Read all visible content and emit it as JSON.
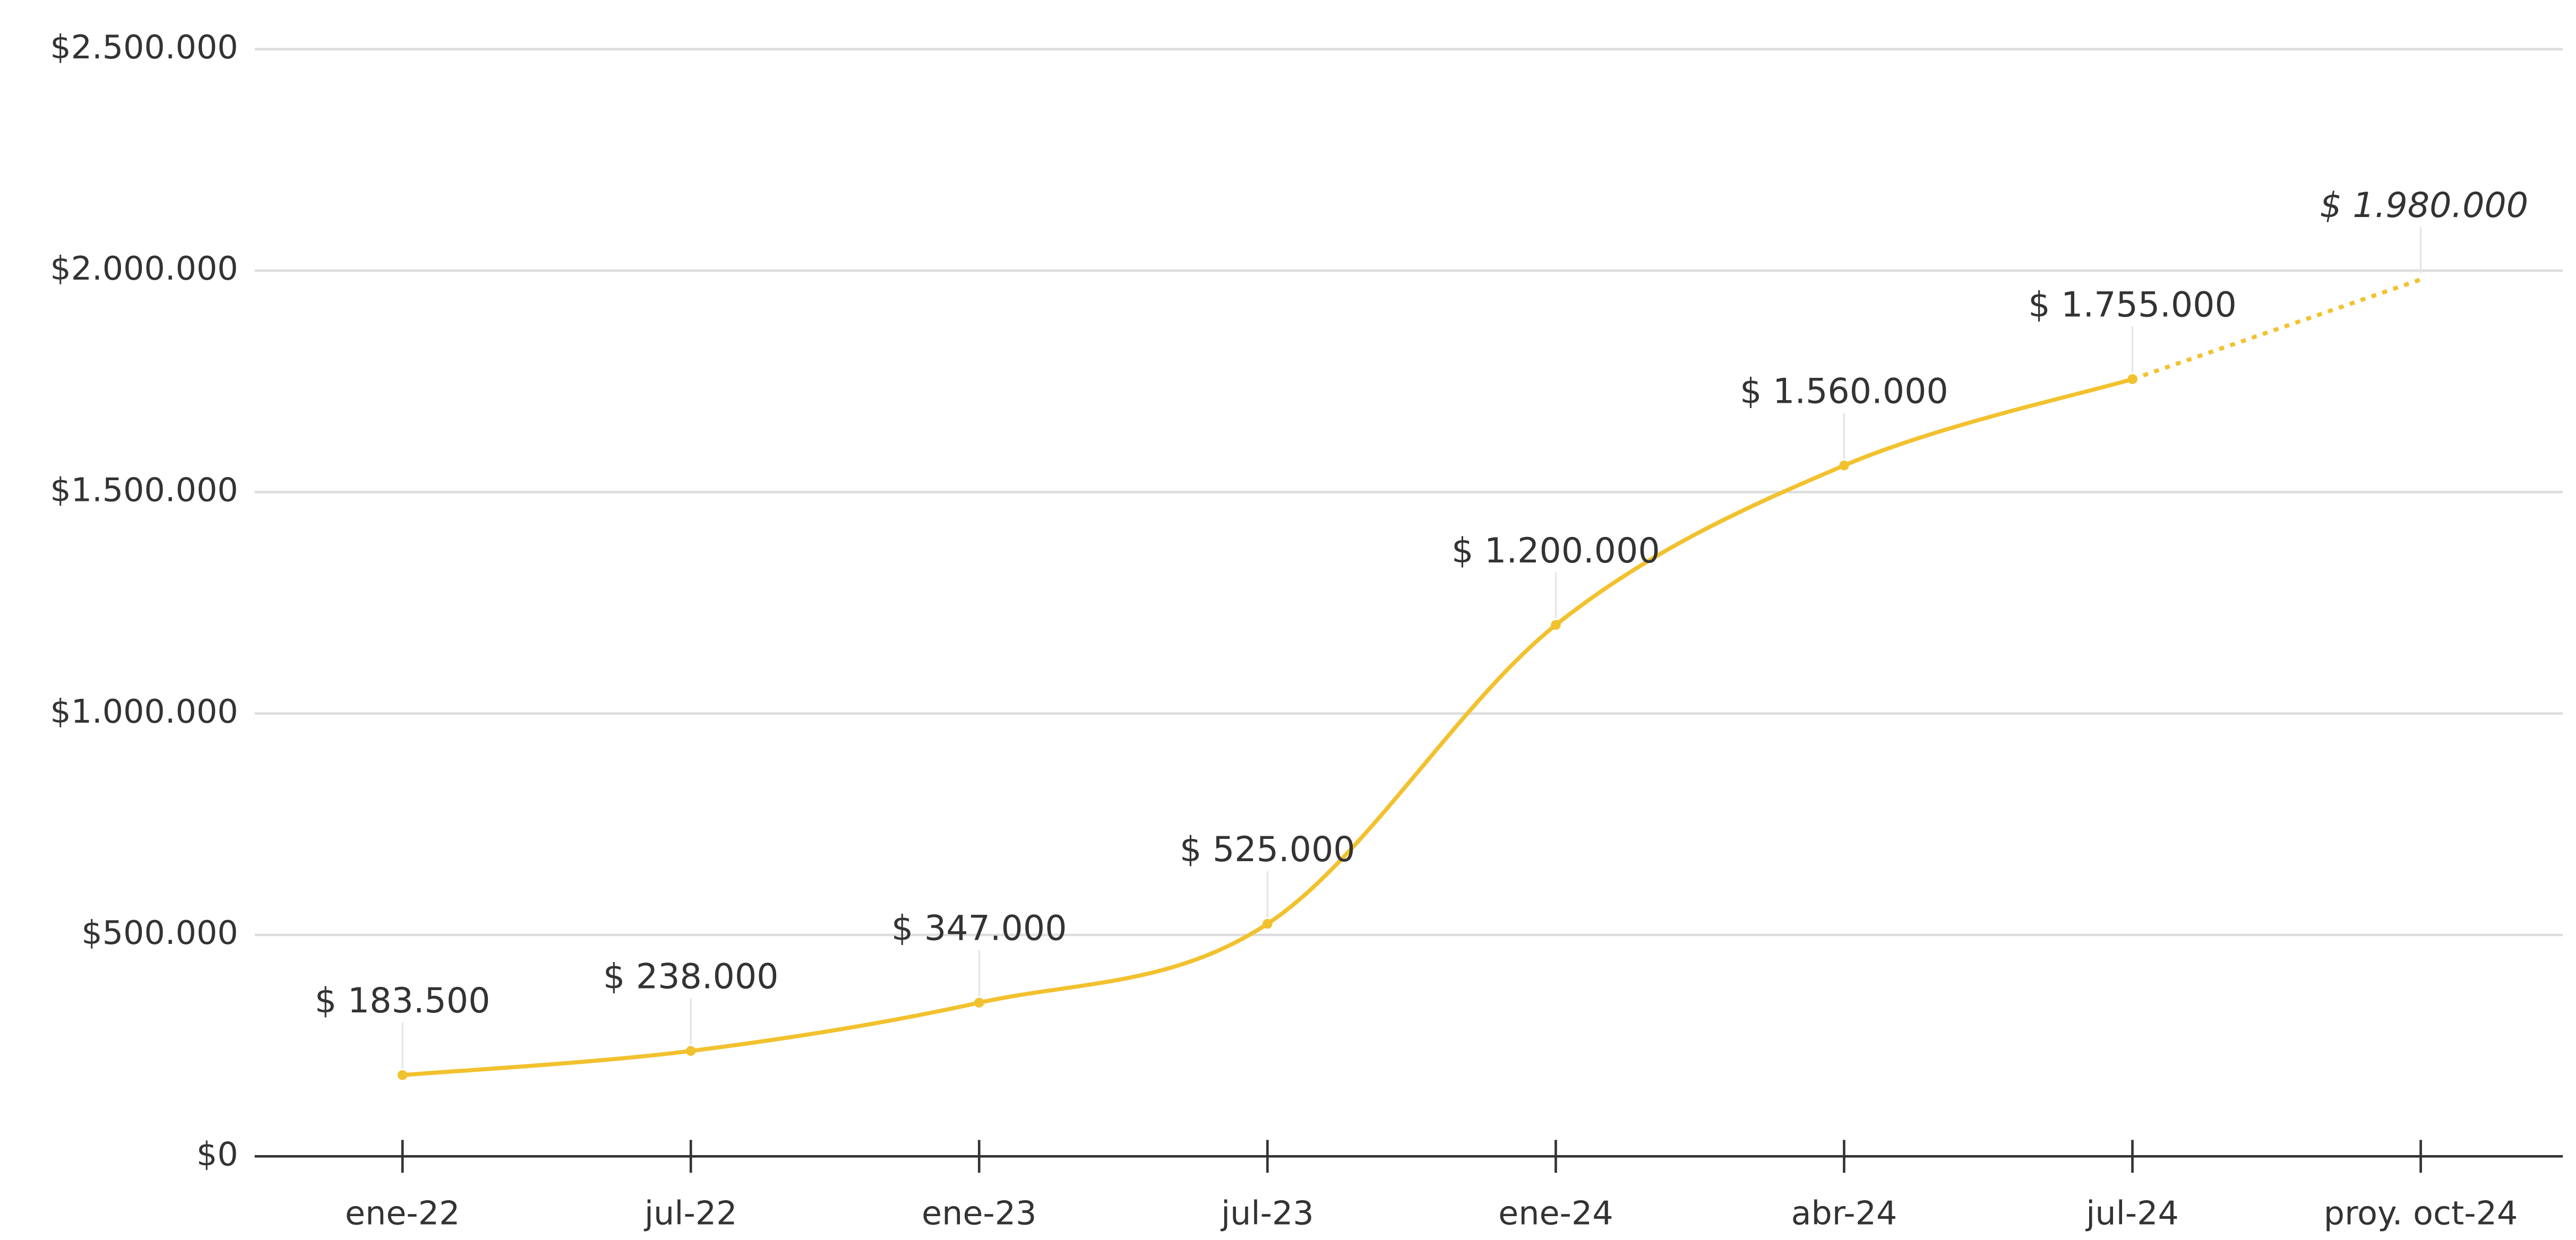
{
  "chart_data": {
    "type": "line",
    "categories": [
      "ene-22",
      "jul-22",
      "ene-23",
      "jul-23",
      "ene-24",
      "abr-24",
      "jul-24",
      "proy. oct-24"
    ],
    "series": [
      {
        "color": "#f2c12e",
        "values": [
          183500,
          238000,
          347000,
          525000,
          1200000,
          1560000,
          1755000,
          1980000
        ],
        "value_labels": [
          "$ 183.500",
          "$ 238.000",
          "$ 347.000",
          "$ 525.000",
          "$ 1.200.000",
          "$ 1.560.000",
          "$ 1.755.000",
          "$ 1.980.000"
        ]
      }
    ],
    "projection": true,
    "ylim": [
      0,
      2500000
    ],
    "yticks": [
      {
        "value": 0,
        "label": "$0"
      },
      {
        "value": 500000,
        "label": "$500.000"
      },
      {
        "value": 1000000,
        "label": "$1.000.000"
      },
      {
        "value": 1500000,
        "label": "$1.500.000"
      },
      {
        "value": 2000000,
        "label": "$2.000.000"
      },
      {
        "value": 2500000,
        "label": "$2.500.000"
      }
    ],
    "grid": true
  }
}
